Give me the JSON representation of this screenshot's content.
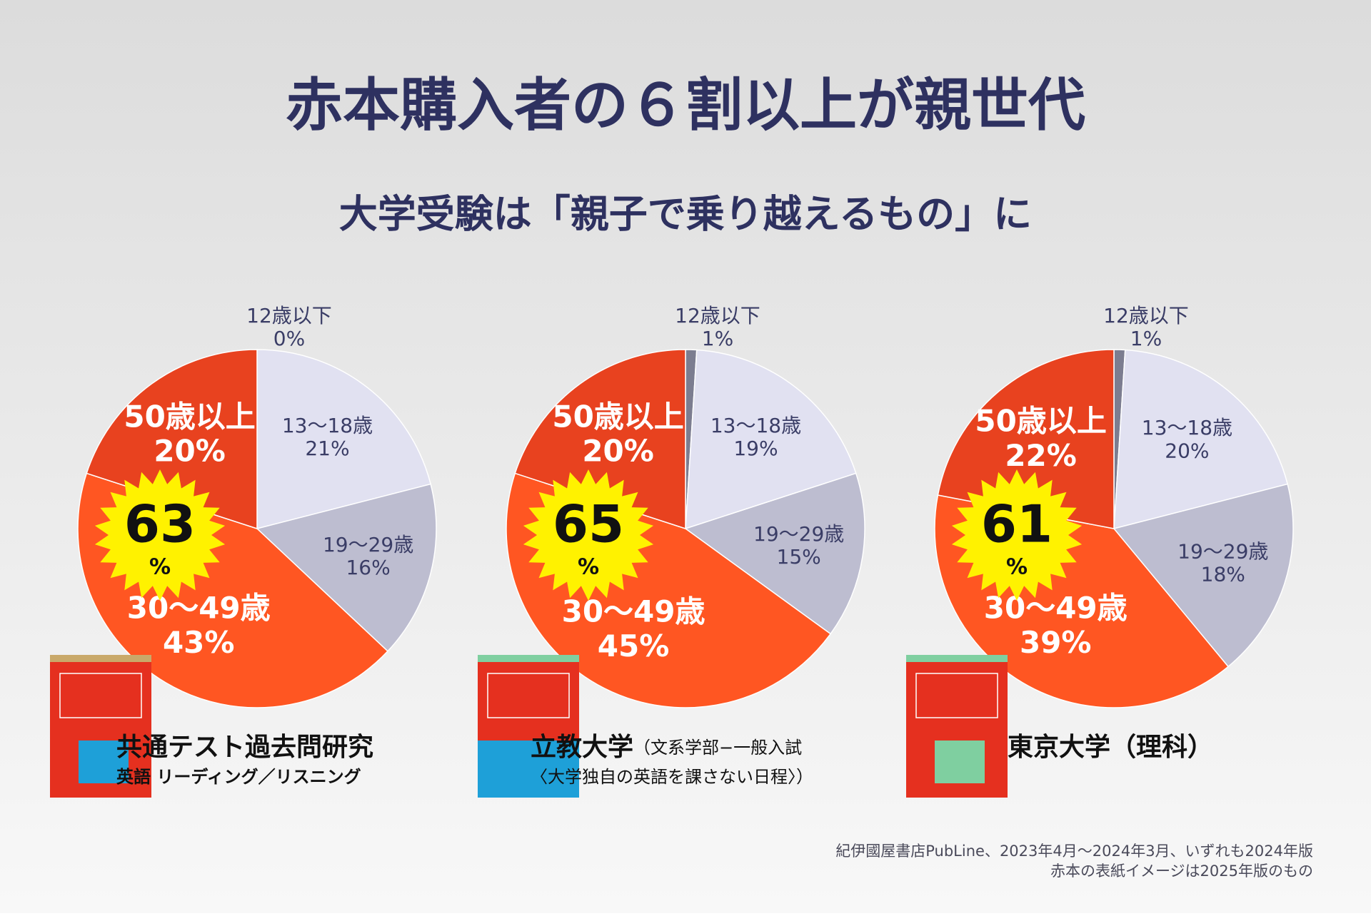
{
  "header": {
    "title": "赤本購入者の６割以上が親世代",
    "subtitle": "大学受験は「親子で乗り越えるもの」に"
  },
  "chart_data": [
    {
      "type": "pie",
      "categories": [
        "12歳以下",
        "13〜18歳",
        "19〜29歳",
        "30〜49歳",
        "50歳以上"
      ],
      "values": [
        0,
        21,
        16,
        43,
        20
      ],
      "value_labels": [
        "0%",
        "21%",
        "16%",
        "43%",
        "20%"
      ],
      "colors": [
        "#7c7d90",
        "#e1e1f1",
        "#bdbdd0",
        "#ff5622",
        "#e8421f"
      ],
      "highlight": 63,
      "highlight_unit": "%",
      "caption": [
        [
          "共通テスト過去問研究"
        ],
        [
          "英語 リーディング／リスニング"
        ]
      ]
    },
    {
      "type": "pie",
      "categories": [
        "12歳以下",
        "13〜18歳",
        "19〜29歳",
        "30〜49歳",
        "50歳以上"
      ],
      "values": [
        1,
        19,
        15,
        45,
        20
      ],
      "value_labels": [
        "1%",
        "19%",
        "15%",
        "45%",
        "20%"
      ],
      "colors": [
        "#7c7d90",
        "#e1e1f1",
        "#bdbdd0",
        "#ff5622",
        "#e8421f"
      ],
      "highlight": 65,
      "highlight_unit": "%",
      "caption": [
        [
          "立教大学",
          "（文系学部−一般入試"
        ],
        [
          "〈大学独自の英語を課さない日程〉）"
        ]
      ]
    },
    {
      "type": "pie",
      "categories": [
        "12歳以下",
        "13〜18歳",
        "19〜29歳",
        "30〜49歳",
        "50歳以上"
      ],
      "values": [
        1,
        20,
        18,
        39,
        22
      ],
      "value_labels": [
        "1%",
        "20%",
        "18%",
        "39%",
        "22%"
      ],
      "colors": [
        "#7c7d90",
        "#e1e1f1",
        "#bdbdd0",
        "#ff5622",
        "#e8421f"
      ],
      "highlight": 61,
      "highlight_unit": "%",
      "caption": [
        [
          "東京大学（理科）"
        ]
      ]
    }
  ],
  "source": [
    "紀伊國屋書店PubLine、2023年4月〜2024年3月、いずれも2024年版",
    "赤本の表紙イメージは2025年版のもの"
  ]
}
